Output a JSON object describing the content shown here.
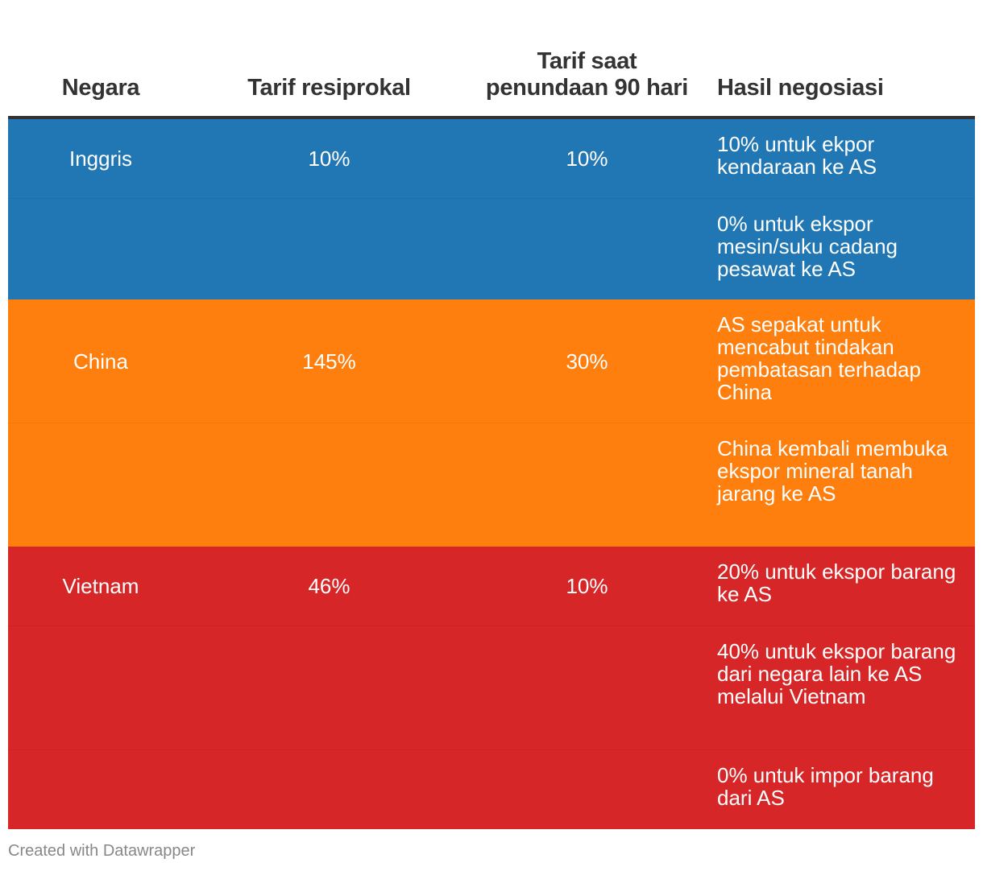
{
  "chart_data": {
    "type": "table",
    "columns": [
      "Negara",
      "Tarif resiprokal",
      "Tarif saat penundaan 90 hari",
      "Hasil negosiasi"
    ],
    "groups": [
      {
        "country": "Inggris",
        "reciprocal": "10%",
        "pause": "10%",
        "color": "#2177b4",
        "outcomes": [
          "10% untuk ekpor kendaraan ke AS",
          "0% untuk ekspor mesin/suku cadang pesawat ke AS"
        ]
      },
      {
        "country": "China",
        "reciprocal": "145%",
        "pause": "30%",
        "color": "#fe7f0e",
        "outcomes": [
          "AS sepakat untuk mencabut tindakan pembatasan terhadap China",
          "China kembali membuka ekspor mineral tanah jarang ke AS"
        ]
      },
      {
        "country": "Vietnam",
        "reciprocal": "46%",
        "pause": "10%",
        "color": "#d62628",
        "outcomes": [
          "20% untuk ekspor barang ke AS",
          "40% untuk ekspor barang dari negara lain ke AS melalui Vietnam",
          "0% untuk impor barang dari AS"
        ]
      }
    ]
  },
  "header": {
    "col1": "Negara",
    "col2": "Tarif resiprokal",
    "col3_line1": "Tarif saat",
    "col3_line2": "penundaan 90 hari",
    "col4": "Hasil negosiasi"
  },
  "footer": {
    "credit": "Created with Datawrapper"
  }
}
